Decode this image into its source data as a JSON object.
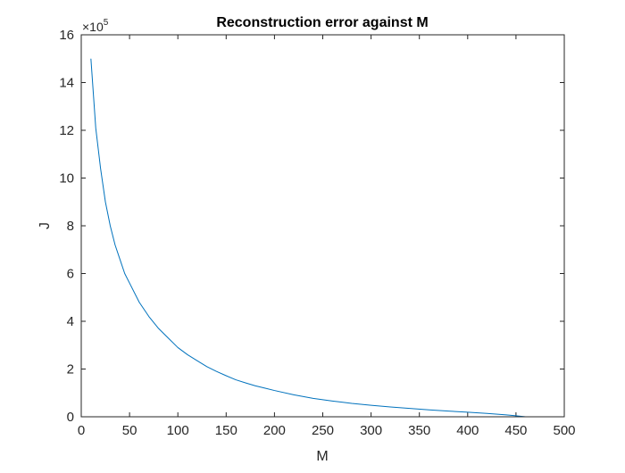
{
  "chart_data": {
    "type": "line",
    "title": "Reconstruction error against M",
    "xlabel": "M",
    "ylabel": "J",
    "xlim": [
      0,
      500
    ],
    "ylim": [
      0,
      16
    ],
    "y_exponent_multiplier": "×10",
    "y_exponent_power": "5",
    "grid": false,
    "legend": "none",
    "xticks": [
      0,
      50,
      100,
      150,
      200,
      250,
      300,
      350,
      400,
      450,
      500
    ],
    "xtick_labels": [
      "0",
      "50",
      "100",
      "150",
      "200",
      "250",
      "300",
      "350",
      "400",
      "450",
      "500"
    ],
    "yticks": [
      0,
      2,
      4,
      6,
      8,
      10,
      12,
      14,
      16
    ],
    "ytick_labels": [
      "0",
      "2",
      "4",
      "6",
      "8",
      "10",
      "12",
      "14",
      "16"
    ],
    "series": [
      {
        "color": "#0072BD",
        "x": [
          10,
          15,
          20,
          25,
          30,
          35,
          40,
          45,
          50,
          60,
          70,
          80,
          90,
          100,
          110,
          120,
          130,
          140,
          150,
          160,
          170,
          180,
          190,
          200,
          220,
          240,
          260,
          280,
          300,
          320,
          340,
          360,
          380,
          400,
          420,
          440,
          450,
          460
        ],
        "y": [
          15.0,
          12.1,
          10.4,
          9.0,
          8.0,
          7.2,
          6.6,
          6.0,
          5.6,
          4.8,
          4.2,
          3.7,
          3.3,
          2.9,
          2.6,
          2.35,
          2.1,
          1.9,
          1.72,
          1.55,
          1.42,
          1.3,
          1.2,
          1.1,
          0.92,
          0.77,
          0.66,
          0.56,
          0.48,
          0.41,
          0.35,
          0.29,
          0.24,
          0.19,
          0.14,
          0.08,
          0.04,
          0.0
        ]
      }
    ]
  }
}
